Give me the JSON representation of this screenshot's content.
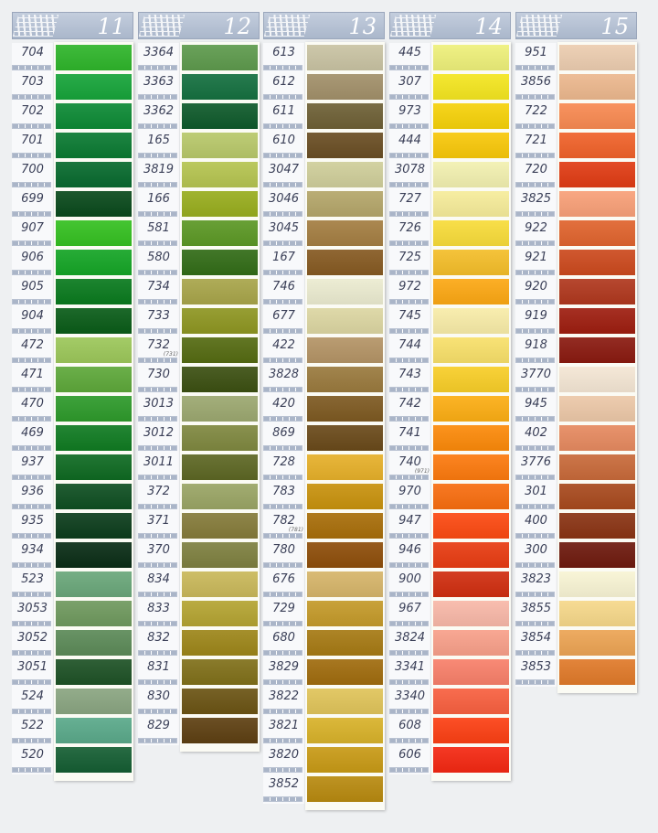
{
  "cards": [
    {
      "number": "11",
      "items": [
        {
          "code": "704",
          "color": "#2fb52b"
        },
        {
          "code": "703",
          "color": "#17a43a"
        },
        {
          "code": "702",
          "color": "#0d8a35"
        },
        {
          "code": "701",
          "color": "#0b7a32"
        },
        {
          "code": "700",
          "color": "#086a2e"
        },
        {
          "code": "699",
          "color": "#0a4a1c"
        },
        {
          "code": "907",
          "color": "#35c021"
        },
        {
          "code": "906",
          "color": "#15a526"
        },
        {
          "code": "905",
          "color": "#0a7a1e"
        },
        {
          "code": "904",
          "color": "#0a5c18"
        },
        {
          "code": "472",
          "color": "#9cc75a"
        },
        {
          "code": "471",
          "color": "#5ea83a"
        },
        {
          "code": "470",
          "color": "#2e9a2b"
        },
        {
          "code": "469",
          "color": "#107b22"
        },
        {
          "code": "937",
          "color": "#0f6a22"
        },
        {
          "code": "936",
          "color": "#0f4f22"
        },
        {
          "code": "935",
          "color": "#0c3d1c"
        },
        {
          "code": "934",
          "color": "#0a2d16"
        },
        {
          "code": "523",
          "color": "#6aa77a"
        },
        {
          "code": "3053",
          "color": "#6f995e"
        },
        {
          "code": "3052",
          "color": "#5c8a58"
        },
        {
          "code": "3051",
          "color": "#1e5226"
        },
        {
          "code": "524",
          "color": "#8aa581"
        },
        {
          "code": "522",
          "color": "#5aa98a"
        },
        {
          "code": "520",
          "color": "#155e33"
        }
      ]
    },
    {
      "number": "12",
      "items": [
        {
          "code": "3364",
          "color": "#5e9a4d"
        },
        {
          "code": "3363",
          "color": "#157040"
        },
        {
          "code": "3362",
          "color": "#0f5a2b"
        },
        {
          "code": "165",
          "color": "#b8c86a"
        },
        {
          "code": "3819",
          "color": "#b5c450"
        },
        {
          "code": "166",
          "color": "#98ad1e"
        },
        {
          "code": "581",
          "color": "#5c9825"
        },
        {
          "code": "580",
          "color": "#326c17"
        },
        {
          "code": "734",
          "color": "#a8a54a"
        },
        {
          "code": "733",
          "color": "#8e9622"
        },
        {
          "code": "732",
          "note": "(731)",
          "color": "#556b12"
        },
        {
          "code": "730",
          "color": "#3c5012"
        },
        {
          "code": "3013",
          "color": "#9ca870"
        },
        {
          "code": "3012",
          "color": "#7f8840"
        },
        {
          "code": "3011",
          "color": "#5d6724"
        },
        {
          "code": "372",
          "color": "#9aa565"
        },
        {
          "code": "371",
          "color": "#857b3a"
        },
        {
          "code": "370",
          "color": "#7e8040"
        },
        {
          "code": "834",
          "color": "#c9b85a"
        },
        {
          "code": "833",
          "color": "#b4a432"
        },
        {
          "code": "832",
          "color": "#9d861a"
        },
        {
          "code": "831",
          "color": "#80701a"
        },
        {
          "code": "830",
          "color": "#6b5414"
        },
        {
          "code": "829",
          "color": "#5e4012"
        }
      ]
    },
    {
      "number": "13",
      "items": [
        {
          "code": "613",
          "color": "#c9c3a3"
        },
        {
          "code": "612",
          "color": "#a2906a"
        },
        {
          "code": "611",
          "color": "#6e6036"
        },
        {
          "code": "610",
          "color": "#6a4e24"
        },
        {
          "code": "3047",
          "color": "#cfce9a"
        },
        {
          "code": "3046",
          "color": "#b4a66a"
        },
        {
          "code": "3045",
          "color": "#a47e42"
        },
        {
          "code": "167",
          "color": "#865a22"
        },
        {
          "code": "746",
          "color": "#ebebd0"
        },
        {
          "code": "677",
          "color": "#dcd6a2"
        },
        {
          "code": "422",
          "color": "#b49466"
        },
        {
          "code": "3828",
          "color": "#9a7a3e"
        },
        {
          "code": "420",
          "color": "#7e5a22"
        },
        {
          "code": "869",
          "color": "#6a4a1a"
        },
        {
          "code": "728",
          "color": "#e6b02a"
        },
        {
          "code": "783",
          "color": "#c8920e"
        },
        {
          "code": "782",
          "note": "(781)",
          "color": "#a86e0a"
        },
        {
          "code": "780",
          "color": "#8e4e0a"
        },
        {
          "code": "676",
          "color": "#d6b56a"
        },
        {
          "code": "729",
          "color": "#c49a2a"
        },
        {
          "code": "680",
          "color": "#a67a14"
        },
        {
          "code": "3829",
          "color": "#a06c0e"
        },
        {
          "code": "3822",
          "color": "#e0c45a"
        },
        {
          "code": "3821",
          "color": "#d8b22a"
        },
        {
          "code": "3820",
          "color": "#c89a16"
        },
        {
          "code": "3852",
          "color": "#b88a10"
        }
      ]
    },
    {
      "number": "14",
      "items": [
        {
          "code": "445",
          "color": "#eef07a"
        },
        {
          "code": "307",
          "color": "#f4e620"
        },
        {
          "code": "973",
          "color": "#f6d20a"
        },
        {
          "code": "444",
          "color": "#f8c80a"
        },
        {
          "code": "3078",
          "color": "#f2f0b0"
        },
        {
          "code": "727",
          "color": "#f6ec9a"
        },
        {
          "code": "726",
          "color": "#f8dc3a"
        },
        {
          "code": "725",
          "color": "#f4be2a"
        },
        {
          "code": "972",
          "color": "#fca814"
        },
        {
          "code": "745",
          "color": "#f8eca8"
        },
        {
          "code": "744",
          "color": "#f8e06a"
        },
        {
          "code": "743",
          "color": "#f8ce28"
        },
        {
          "code": "742",
          "color": "#fcae14"
        },
        {
          "code": "741",
          "color": "#fc8a0a"
        },
        {
          "code": "740",
          "note": "(971)",
          "color": "#fc7a0e"
        },
        {
          "code": "970",
          "color": "#f86e10"
        },
        {
          "code": "947",
          "color": "#fc4a12"
        },
        {
          "code": "946",
          "color": "#e83c12"
        },
        {
          "code": "900",
          "color": "#d02e10"
        },
        {
          "code": "967",
          "color": "#f8b8a8"
        },
        {
          "code": "3824",
          "color": "#f8a08a"
        },
        {
          "code": "3341",
          "color": "#f8806a"
        },
        {
          "code": "3340",
          "color": "#f86040"
        },
        {
          "code": "608",
          "color": "#fc4014"
        },
        {
          "code": "606",
          "color": "#f42812"
        }
      ]
    },
    {
      "number": "15",
      "items": [
        {
          "code": "951",
          "color": "#eccdb0"
        },
        {
          "code": "3856",
          "color": "#ecb88e"
        },
        {
          "code": "722",
          "color": "#f88a52"
        },
        {
          "code": "721",
          "color": "#f0622a"
        },
        {
          "code": "720",
          "color": "#e03c14"
        },
        {
          "code": "3825",
          "color": "#f8a078"
        },
        {
          "code": "922",
          "color": "#e0642e"
        },
        {
          "code": "921",
          "color": "#cc4a1e"
        },
        {
          "code": "920",
          "color": "#b0381e"
        },
        {
          "code": "919",
          "color": "#9e1e10"
        },
        {
          "code": "918",
          "color": "#8a1a10"
        },
        {
          "code": "3770",
          "color": "#f4e6d4"
        },
        {
          "code": "945",
          "color": "#ecc8a8"
        },
        {
          "code": "402",
          "color": "#e68a60"
        },
        {
          "code": "3776",
          "color": "#c86a3a"
        },
        {
          "code": "301",
          "color": "#a84a1e"
        },
        {
          "code": "400",
          "color": "#8a3414"
        },
        {
          "code": "300",
          "color": "#6e1a0e"
        },
        {
          "code": "3823",
          "color": "#f8f4d4"
        },
        {
          "code": "3855",
          "color": "#f6d88a"
        },
        {
          "code": "3854",
          "color": "#eca454"
        },
        {
          "code": "3853",
          "color": "#e07a2a"
        }
      ]
    }
  ]
}
